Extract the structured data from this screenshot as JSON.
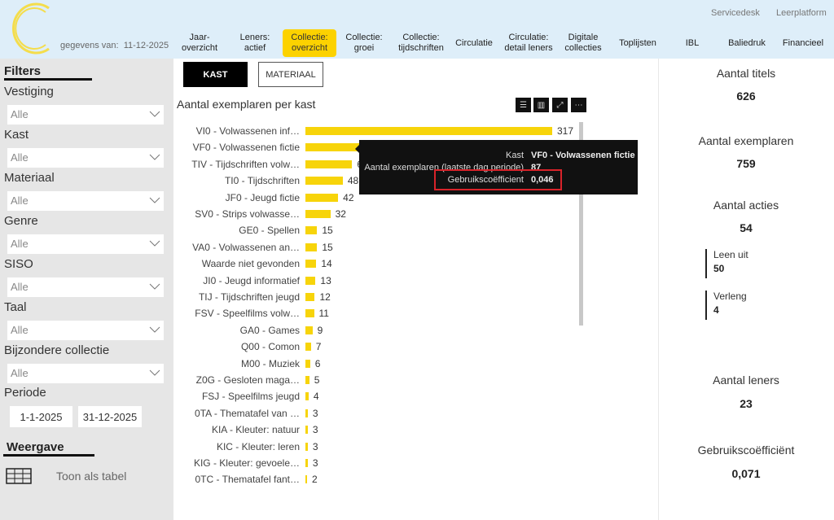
{
  "header": {
    "data_date_label": "gegevens van:",
    "data_date": "11-12-2025",
    "top_links": [
      "Servicedesk",
      "Leerplatform"
    ],
    "nav": [
      {
        "label": "Jaar-\noverzicht",
        "active": false
      },
      {
        "label": "Leners: actief",
        "active": false
      },
      {
        "label": "Collectie:\noverzicht",
        "active": true
      },
      {
        "label": "Collectie:\ngroei",
        "active": false
      },
      {
        "label": "Collectie:\ntijdschriften",
        "active": false
      },
      {
        "label": "Circulatie",
        "active": false
      },
      {
        "label": "Circulatie:\ndetail leners",
        "active": false
      },
      {
        "label": "Digitale\ncollecties",
        "active": false
      },
      {
        "label": "Toplijsten",
        "active": false
      },
      {
        "label": "IBL",
        "active": false
      },
      {
        "label": "Baliedruk",
        "active": false
      },
      {
        "label": "Financieel",
        "active": false
      }
    ],
    "accent": "#fcd200"
  },
  "sidebar": {
    "filters_title": "Filters",
    "filters": [
      {
        "label": "Vestiging",
        "value": "Alle"
      },
      {
        "label": "Kast",
        "value": "Alle"
      },
      {
        "label": "Materiaal",
        "value": "Alle"
      },
      {
        "label": "Genre",
        "value": "Alle"
      },
      {
        "label": "SISO",
        "value": "Alle"
      },
      {
        "label": "Taal",
        "value": "Alle"
      },
      {
        "label": "Bijzondere collectie",
        "value": "Alle"
      }
    ],
    "period_label": "Periode",
    "period_start": "1-1-2025",
    "period_end": "31-12-2025",
    "view_title": "Weergave",
    "table_toggle": "Toon als tabel"
  },
  "main": {
    "tabs": [
      {
        "label": "KAST",
        "active": true
      },
      {
        "label": "MATERIAAL",
        "active": false
      }
    ],
    "chart_icons": [
      "filter-icon",
      "focus-icon",
      "expand-icon",
      "more-icon"
    ]
  },
  "chart_data": {
    "type": "bar",
    "orientation": "horizontal",
    "title": "Aantal exemplaren per kast",
    "bar_color": "#f7d40a",
    "categories": [
      "VI0 - Volwassenen inf…",
      "VF0 - Volwassenen fictie",
      "TIV - Tijdschriften volw…",
      "TI0 - Tijdschriften",
      "JF0 - Jeugd fictie",
      "SV0 - Strips volwasse…",
      "GE0 - Spellen",
      "VA0 - Volwassenen an…",
      "Waarde niet gevonden",
      "JI0 - Jeugd informatief",
      "TIJ - Tijdschriften jeugd",
      "FSV - Speelfilms volw…",
      "GA0 - Games",
      "Q00 - Comon",
      "M00 - Muziek",
      "Z0G - Gesloten maga…",
      "FSJ - Speelfilms jeugd",
      "0TA - Thematafel van …",
      "KIA - Kleuter: natuur",
      "KIC - Kleuter: leren",
      "KIG - Kleuter: gevoele…",
      "0TC - Thematafel fant…"
    ],
    "values": [
      317,
      87,
      60,
      48,
      42,
      32,
      15,
      15,
      14,
      13,
      12,
      11,
      9,
      7,
      6,
      5,
      4,
      3,
      3,
      3,
      3,
      2
    ]
  },
  "tooltip": {
    "rows": [
      {
        "key": "Kast",
        "value": "VF0 - Volwassenen fictie"
      },
      {
        "key": "Aantal exemplaren (laatste dag periode)",
        "value": "87"
      },
      {
        "key": "Gebruikscoëfficient",
        "value": "0,046"
      }
    ],
    "highlight_color": "#d8232a"
  },
  "kpis": {
    "titels_label": "Aantal titels",
    "titels": "626",
    "exemplaren_label": "Aantal exemplaren",
    "exemplaren": "759",
    "acties_label": "Aantal acties",
    "acties": "54",
    "leen_label": "Leen uit",
    "leen": "50",
    "verleng_label": "Verleng",
    "verleng": "4",
    "leners_label": "Aantal leners",
    "leners": "23",
    "coef_label": "Gebruikscoëfficiënt",
    "coef": "0,071"
  }
}
